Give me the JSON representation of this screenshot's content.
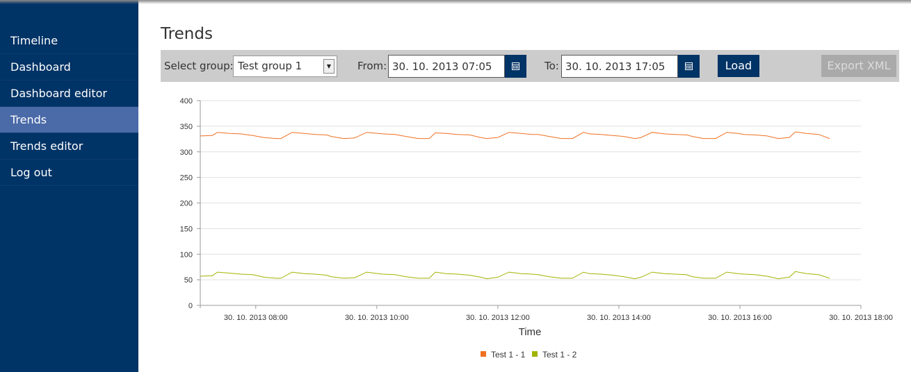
{
  "sidebar": {
    "items": [
      {
        "label": "Timeline",
        "active": false
      },
      {
        "label": "Dashboard",
        "active": false
      },
      {
        "label": "Dashboard editor",
        "active": false
      },
      {
        "label": "Trends",
        "active": true
      },
      {
        "label": "Trends editor",
        "active": false
      },
      {
        "label": "Log out",
        "active": false
      }
    ]
  },
  "page": {
    "title": "Trends"
  },
  "toolbar": {
    "group_label": "Select group:",
    "group_value": "Test group 1",
    "from_label": "From:",
    "from_value": "30. 10. 2013 07:05",
    "to_label": "To:",
    "to_value": "30. 10. 2013 17:05",
    "load_label": "Load",
    "export_label": "Export XML",
    "export_enabled": false
  },
  "colors": {
    "sidebar_bg": "#003366",
    "active_item": "#4a6aa8",
    "series1": "#f07020",
    "series2": "#a0b400",
    "grid": "#e0e0e0"
  },
  "chart_data": {
    "type": "line",
    "xlabel": "Time",
    "ylabel": "",
    "ylim": [
      0,
      400
    ],
    "yticks": [
      0,
      50,
      100,
      150,
      200,
      250,
      300,
      350,
      400
    ],
    "xlim": [
      "30. 10. 2013 07:05",
      "30. 10. 2013 18:00"
    ],
    "xticks": [
      "30. 10. 2013 08:00",
      "30. 10. 2013 10:00",
      "30. 10. 2013 12:00",
      "30. 10. 2013 14:00",
      "30. 10. 2013 16:00",
      "30. 10. 2013 18:00"
    ],
    "grid": true,
    "legend": "bottom-center",
    "series": [
      {
        "name": "Test 1 - 1",
        "color": "#f07020",
        "x": [
          "07:05",
          "07:17",
          "07:22",
          "07:34",
          "07:45",
          "07:57",
          "08:08",
          "08:20",
          "08:25",
          "08:36",
          "08:48",
          "08:59",
          "09:10",
          "09:15",
          "09:27",
          "09:38",
          "09:50",
          "10:01",
          "10:06",
          "10:18",
          "10:29",
          "10:41",
          "10:52",
          "10:58",
          "11:09",
          "11:20",
          "11:32",
          "11:43",
          "11:49",
          "12:00",
          "12:11",
          "12:23",
          "12:34",
          "12:40",
          "12:51",
          "13:03",
          "13:14",
          "13:25",
          "13:31",
          "13:42",
          "13:54",
          "14:05",
          "14:16",
          "14:22",
          "14:33",
          "14:45",
          "14:56",
          "15:07",
          "15:13",
          "15:24",
          "15:36",
          "15:47",
          "15:58",
          "16:04",
          "16:15",
          "16:27",
          "16:38",
          "16:49",
          "16:55",
          "17:06",
          "17:18",
          "17:29"
        ],
        "y": [
          331,
          332,
          338,
          336,
          335,
          332,
          328,
          326,
          326,
          338,
          336,
          334,
          333,
          330,
          326,
          327,
          338,
          336,
          335,
          334,
          330,
          326,
          326,
          337,
          336,
          334,
          333,
          328,
          326,
          328,
          338,
          336,
          334,
          334,
          330,
          326,
          326,
          338,
          335,
          334,
          332,
          330,
          326,
          328,
          338,
          335,
          334,
          333,
          330,
          326,
          326,
          338,
          336,
          334,
          333,
          331,
          326,
          328,
          339,
          336,
          334,
          326
        ]
      },
      {
        "name": "Test 1 - 2",
        "color": "#a0b400",
        "x": [
          "07:05",
          "07:17",
          "07:22",
          "07:34",
          "07:45",
          "07:57",
          "08:08",
          "08:20",
          "08:25",
          "08:36",
          "08:48",
          "08:59",
          "09:10",
          "09:15",
          "09:27",
          "09:38",
          "09:50",
          "10:01",
          "10:06",
          "10:18",
          "10:29",
          "10:41",
          "10:52",
          "10:58",
          "11:09",
          "11:20",
          "11:32",
          "11:43",
          "11:49",
          "12:00",
          "12:11",
          "12:23",
          "12:34",
          "12:40",
          "12:51",
          "13:03",
          "13:14",
          "13:25",
          "13:31",
          "13:42",
          "13:54",
          "14:05",
          "14:16",
          "14:22",
          "14:33",
          "14:45",
          "14:56",
          "15:07",
          "15:13",
          "15:24",
          "15:36",
          "15:47",
          "15:58",
          "16:04",
          "16:15",
          "16:27",
          "16:38",
          "16:49",
          "16:55",
          "17:06",
          "17:18",
          "17:29"
        ],
        "y": [
          57,
          58,
          65,
          63,
          61,
          60,
          55,
          53,
          53,
          65,
          62,
          61,
          59,
          56,
          53,
          54,
          65,
          62,
          61,
          60,
          56,
          53,
          53,
          65,
          62,
          61,
          59,
          55,
          52,
          55,
          65,
          62,
          61,
          60,
          56,
          53,
          53,
          65,
          62,
          61,
          59,
          56,
          52,
          55,
          65,
          62,
          61,
          60,
          56,
          53,
          53,
          65,
          62,
          61,
          60,
          57,
          52,
          55,
          66,
          62,
          60,
          53
        ]
      }
    ]
  }
}
